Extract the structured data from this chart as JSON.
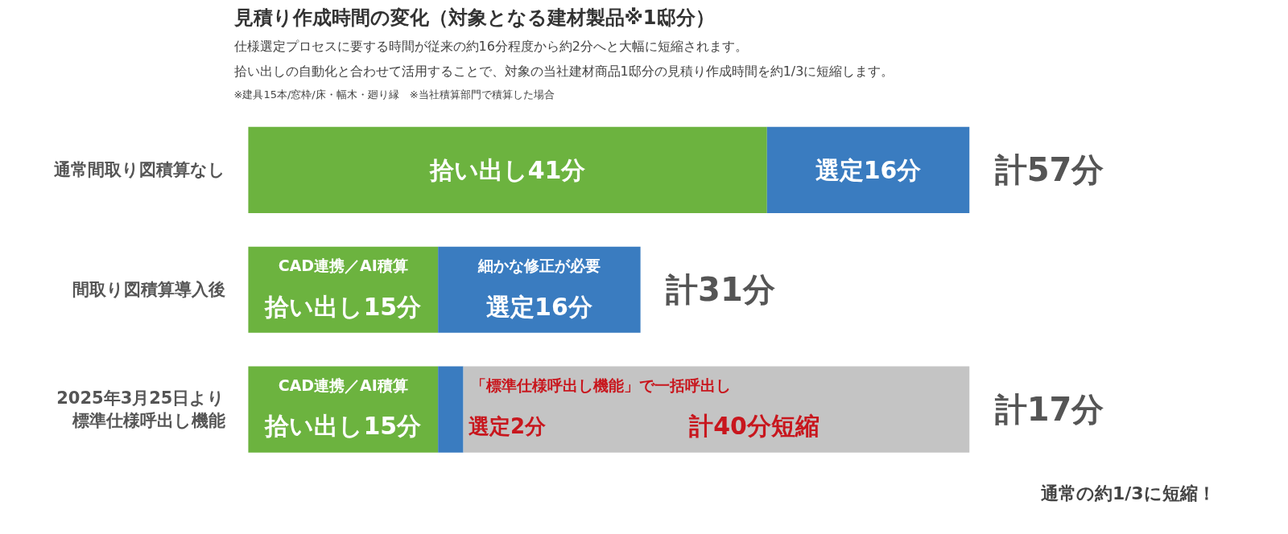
{
  "chart_data": {
    "type": "bar",
    "orientation": "horizontal",
    "stacked": true,
    "title": "見積り作成時間の変化（対象となる建材製品※1邸分）",
    "subtitle": "仕様選定プロセスに要する時間が従来の約16分程度から約2分へと大幅に短縮されます。",
    "categories": [
      "通常間取り図積算なし",
      "間取り図積算導入後",
      "2025年3月25日より標準仕様呼出し機能"
    ],
    "series": [
      {
        "color": "#6cb33f",
        "values": [
          41,
          15,
          15
        ],
        "value_labels": [
          "拾い出し41分",
          "拾い出し15分",
          "拾い出し15分"
        ]
      },
      {
        "color": "#3a7cc0",
        "values": [
          16,
          16,
          2
        ],
        "value_labels": [
          "選定16分",
          "選定16分",
          "選定2分"
        ]
      },
      {
        "color": "#c4c4c4",
        "values": [
          null,
          null,
          40
        ],
        "value_labels": [
          null,
          null,
          "計40分短縮"
        ]
      }
    ],
    "totals": [
      "計57分",
      "計31分",
      "計17分"
    ],
    "annotations": [
      "※建具15本/窓枠/床・幅木・廻り縁　※当社積算部門で積算した場合",
      "拾い出しの自動化と合わせて活用することで、対象の当社建材商品1邸分の見積り作成時間を約1/3に短縮します。",
      "CAD連携／AI積算",
      "細かな修正が必要",
      "CAD連携／AI積算",
      "「標準仕様呼出し機能」で一括呼出し",
      "通常の約1/3に短縮！"
    ],
    "tick_labels": "y",
    "grid": false
  }
}
